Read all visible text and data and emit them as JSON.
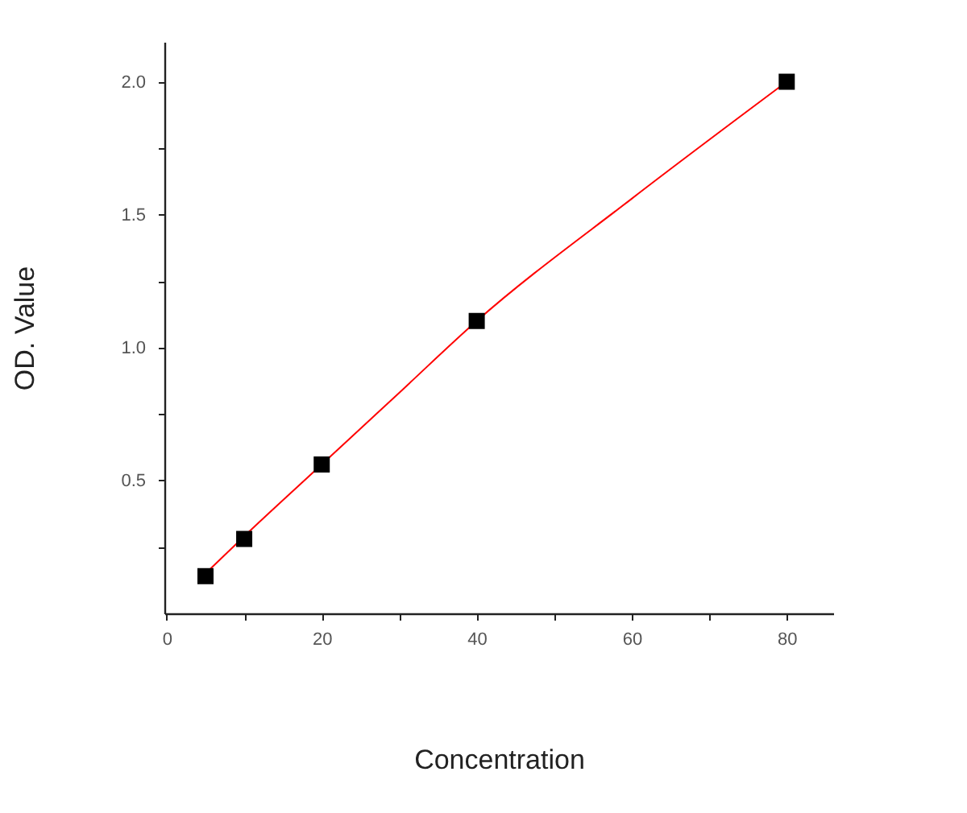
{
  "chart_data": {
    "type": "scatter",
    "xlabel": "Concentration",
    "ylabel": "OD. Value",
    "x": [
      5,
      10,
      20,
      40,
      80
    ],
    "series": [
      {
        "color": "#000000",
        "marker": "square",
        "values": [
          0.14,
          0.28,
          0.56,
          1.1,
          2.0
        ]
      },
      {
        "type": "line",
        "color": "#ff0000",
        "marker": "none",
        "line_style": "solid",
        "x": [
          5,
          10,
          20,
          30,
          40,
          60,
          80
        ],
        "values": [
          0.15,
          0.29,
          0.56,
          0.83,
          1.1,
          1.56,
          2.0
        ]
      }
    ],
    "xlim": [
      -0.3,
      86
    ],
    "ylim": [
      0,
      2.15
    ],
    "xticks": [
      0,
      {
        "value": 10,
        "label": null
      },
      20,
      {
        "value": 30,
        "label": null
      },
      40,
      {
        "value": 50,
        "label": null
      },
      60,
      {
        "value": 70,
        "label": null
      },
      80
    ],
    "yticks": [
      {
        "value": 0.25,
        "label": null
      },
      0.5,
      {
        "value": 0.75,
        "label": null
      },
      {
        "value": 1,
        "label": "1.0"
      },
      {
        "value": 1.25,
        "label": null
      },
      1.5,
      {
        "value": 1.75,
        "label": null
      },
      {
        "value": 2,
        "label": "2.0"
      }
    ],
    "grid": false
  }
}
